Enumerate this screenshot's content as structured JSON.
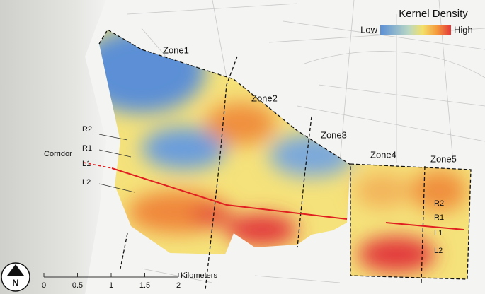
{
  "legend": {
    "title": "Kernel Density",
    "low": "Low",
    "high": "High"
  },
  "zones": [
    "Zone1",
    "Zone2",
    "Zone3",
    "Zone4",
    "Zone5"
  ],
  "corridor": {
    "label": "Corridor",
    "lines": [
      "R2",
      "R1",
      "L1",
      "L2"
    ],
    "right_lines": [
      "R2",
      "R1",
      "L1",
      "L2"
    ]
  },
  "scale": {
    "unit": "Kilometers",
    "ticks": [
      0,
      0.5,
      1,
      1.5,
      2
    ]
  },
  "north": "N"
}
